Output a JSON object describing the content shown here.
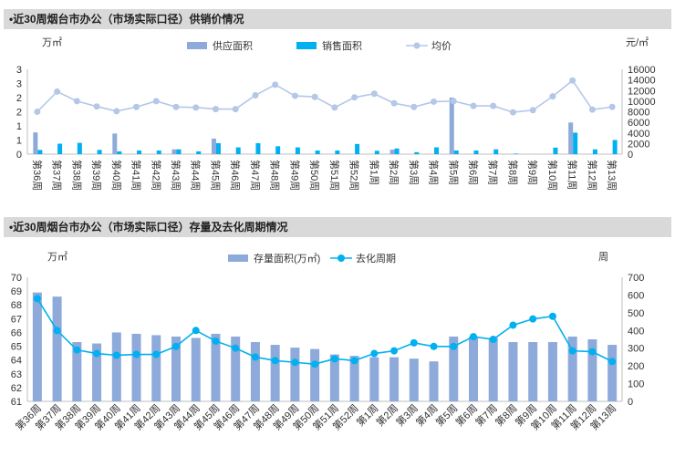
{
  "page": {
    "chart1_title": "•近30周烟台市办公（市场实际口径）供销价情况",
    "chart2_title": "•近30周烟台市办公（市场实际口径）存量及去化周期情况"
  },
  "chart_data": [
    {
      "type": "bar",
      "title": "•近30周烟台市办公（市场实际口径）供销价情况",
      "left_unit": "万㎡",
      "right_unit": "元/㎡",
      "categories": [
        "第36周",
        "第37周",
        "第38周",
        "第39周",
        "第40周",
        "第41周",
        "第42周",
        "第43周",
        "第44周",
        "第45周",
        "第46周",
        "第47周",
        "第48周",
        "第49周",
        "第50周",
        "第51周",
        "第52周",
        "第1周",
        "第2周",
        "第3周",
        "第4周",
        "第5周",
        "第6周",
        "第7周",
        "第8周",
        "第9周",
        "第10周",
        "第11周",
        "第12周",
        "第13周"
      ],
      "left_ylim": [
        0,
        3
      ],
      "left_ticks": [
        "0",
        "1",
        "1",
        "2",
        "2",
        "3",
        "3"
      ],
      "left_tick_values": [
        0,
        0.5,
        1,
        1.5,
        2,
        2.5,
        3
      ],
      "right_ylim": [
        0,
        16000
      ],
      "right_ticks": [
        0,
        2000,
        4000,
        6000,
        8000,
        10000,
        12000,
        14000,
        16000
      ],
      "series": [
        {
          "name": "供应面积",
          "kind": "bar",
          "color": "#8eaadb",
          "values": [
            0.77,
            0,
            0,
            0,
            0.73,
            0,
            0,
            0.17,
            0,
            0.55,
            0,
            0,
            0,
            0,
            0,
            0,
            0,
            0,
            0.16,
            0,
            0,
            2.0,
            0,
            0,
            0,
            0,
            0,
            1.12,
            0,
            0
          ]
        },
        {
          "name": "销售面积",
          "kind": "bar",
          "color": "#00b0f0",
          "values": [
            0.15,
            0.37,
            0.4,
            0.15,
            0.1,
            0.13,
            0.13,
            0.17,
            0.1,
            0.39,
            0.24,
            0.39,
            0.28,
            0.24,
            0.13,
            0.13,
            0.36,
            0.12,
            0.2,
            0.07,
            0.24,
            0.13,
            0.13,
            0.17,
            0.02,
            0,
            0.23,
            0.76,
            0.17,
            0.5
          ]
        },
        {
          "name": "均价",
          "kind": "line",
          "axis": "right",
          "color": "#b4c7e7",
          "values": [
            8000,
            11800,
            10000,
            9000,
            8100,
            8900,
            10000,
            8900,
            8800,
            8500,
            8500,
            11100,
            13100,
            11000,
            10800,
            8800,
            10700,
            11400,
            9600,
            8900,
            9900,
            10000,
            9100,
            9100,
            7900,
            8300,
            10900,
            13900,
            8400,
            8900
          ]
        }
      ]
    },
    {
      "type": "bar",
      "title": "•近30周烟台市办公（市场实际口径）存量及去化周期情况",
      "left_unit": "万㎡",
      "right_unit": "周",
      "categories": [
        "第36周",
        "第37周",
        "第38周",
        "第39周",
        "第40周",
        "第41周",
        "第42周",
        "第43周",
        "第44周",
        "第45周",
        "第46周",
        "第47周",
        "第48周",
        "第49周",
        "第50周",
        "第51周",
        "第52周",
        "第1周",
        "第2周",
        "第3周",
        "第4周",
        "第5周",
        "第6周",
        "第7周",
        "第8周",
        "第9周",
        "第10周",
        "第11周",
        "第12周",
        "第13周"
      ],
      "left_ylim": [
        61,
        70
      ],
      "left_ticks": [
        61,
        62,
        63,
        64,
        65,
        66,
        67,
        68,
        69,
        70
      ],
      "right_ylim": [
        0,
        700
      ],
      "right_ticks": [
        0,
        100,
        200,
        300,
        400,
        500,
        600,
        700
      ],
      "series": [
        {
          "name": "存量面积(万㎡)",
          "kind": "bar",
          "color": "#8eaadb",
          "values": [
            68.9,
            68.6,
            65.3,
            65.2,
            66.0,
            65.9,
            65.8,
            65.7,
            65.6,
            65.9,
            65.7,
            65.3,
            65.1,
            64.9,
            64.8,
            64.4,
            64.3,
            64.2,
            64.2,
            64.1,
            63.9,
            65.7,
            65.7,
            65.6,
            65.3,
            65.3,
            65.3,
            65.7,
            65.5,
            65.1
          ]
        },
        {
          "name": "去化周期",
          "kind": "line",
          "axis": "right",
          "color": "#00b0f0",
          "values": [
            580,
            400,
            290,
            270,
            260,
            265,
            265,
            310,
            400,
            340,
            300,
            250,
            230,
            220,
            210,
            240,
            230,
            270,
            285,
            330,
            310,
            310,
            365,
            350,
            430,
            465,
            480,
            285,
            280,
            225
          ]
        }
      ]
    }
  ]
}
